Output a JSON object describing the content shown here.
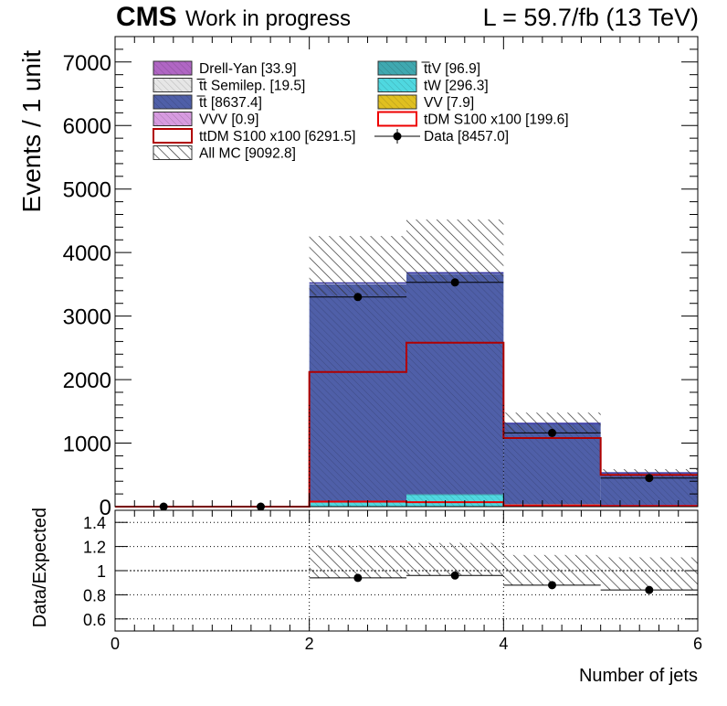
{
  "header": {
    "cms": "CMS",
    "extra": "Work in progress",
    "lumi": "L = 59.7/fb (13 TeV)"
  },
  "legend": [
    {
      "label": "Drell-Yan [33.9]",
      "color": "#b066c4",
      "style": "fill-hatch"
    },
    {
      "label": "t̅t Semilep. [19.5]",
      "color": "#e6e6e6",
      "style": "fill-hatch"
    },
    {
      "label": "t̅t [8637.4]",
      "color": "#4f5fa8",
      "style": "fill-hatch"
    },
    {
      "label": "VVV [0.9]",
      "color": "#d79be0",
      "style": "fill-hatch"
    },
    {
      "label": "ttDM S100 x100 [6291.5]",
      "color": "#b00000",
      "style": "line"
    },
    {
      "label": "All MC [9092.8]",
      "color": "#333333",
      "style": "hatch"
    },
    {
      "label": "t̅tV [96.9]",
      "color": "#3fa8b0",
      "style": "fill-hatch"
    },
    {
      "label": "tW [296.3]",
      "color": "#4fd8e0",
      "style": "fill-hatch"
    },
    {
      "label": "VV [7.9]",
      "color": "#e0c020",
      "style": "fill-hatch"
    },
    {
      "label": "tDM S100 x100 [199.6]",
      "color": "#ee0000",
      "style": "line"
    },
    {
      "label": "Data [8457.0]",
      "color": "#000000",
      "style": "marker"
    }
  ],
  "chart_data": [
    {
      "type": "bar",
      "subtype": "stacked-histogram",
      "bin_edges": [
        0,
        1,
        2,
        3,
        4,
        5,
        6
      ],
      "ylabel": "Events / 1 unit",
      "ylim": [
        0,
        7400
      ],
      "yticks": [
        "0",
        "1000",
        "2000",
        "3000",
        "4000",
        "5000",
        "6000",
        "7000"
      ],
      "series": [
        {
          "name": "tW",
          "values": [
            0,
            0,
            60,
            180,
            30,
            10
          ],
          "color": "#4fd8e0"
        },
        {
          "name": "t̅tV",
          "values": [
            0,
            0,
            10,
            15,
            10,
            5
          ],
          "color": "#3fa8b0"
        },
        {
          "name": "t̅t",
          "values": [
            0,
            0,
            3430,
            3470,
            1260,
            500
          ],
          "color": "#4f5fa8"
        },
        {
          "name": "ttDM S100 x100",
          "values": [
            0,
            0,
            2120,
            2580,
            1080,
            500
          ],
          "color": "#b00000",
          "overlay": true
        },
        {
          "name": "tDM S100 x100",
          "values": [
            0,
            0,
            80,
            70,
            20,
            10
          ],
          "color": "#ee0000",
          "overlay": true
        },
        {
          "name": "Data",
          "values": [
            0,
            0,
            3300,
            3530,
            1160,
            450
          ],
          "color": "#000000",
          "points": true
        }
      ],
      "mc_total": [
        0,
        0,
        3520,
        3680,
        1310,
        530
      ],
      "mc_unc_up": [
        0,
        0,
        4260,
        4520,
        1480,
        590
      ],
      "mc_unc_down": [
        0,
        0,
        3320,
        3540,
        1160,
        470
      ]
    },
    {
      "type": "scatter",
      "subtype": "ratio",
      "xlabel": "Number of jets",
      "ylabel": "Data/Expected",
      "xlim": [
        0,
        6
      ],
      "xticks": [
        "0",
        "2",
        "4",
        "6"
      ],
      "ylim": [
        0.5,
        1.5
      ],
      "yticks": [
        "0.6",
        "0.8",
        "1",
        "1.2",
        "1.4"
      ],
      "x": [
        2.5,
        3.5,
        4.5,
        5.5
      ],
      "y": [
        0.94,
        0.96,
        0.88,
        0.84
      ],
      "band_up": [
        1.21,
        1.23,
        1.13,
        1.11
      ],
      "band_down": [
        0.94,
        0.96,
        0.88,
        0.84
      ]
    }
  ]
}
